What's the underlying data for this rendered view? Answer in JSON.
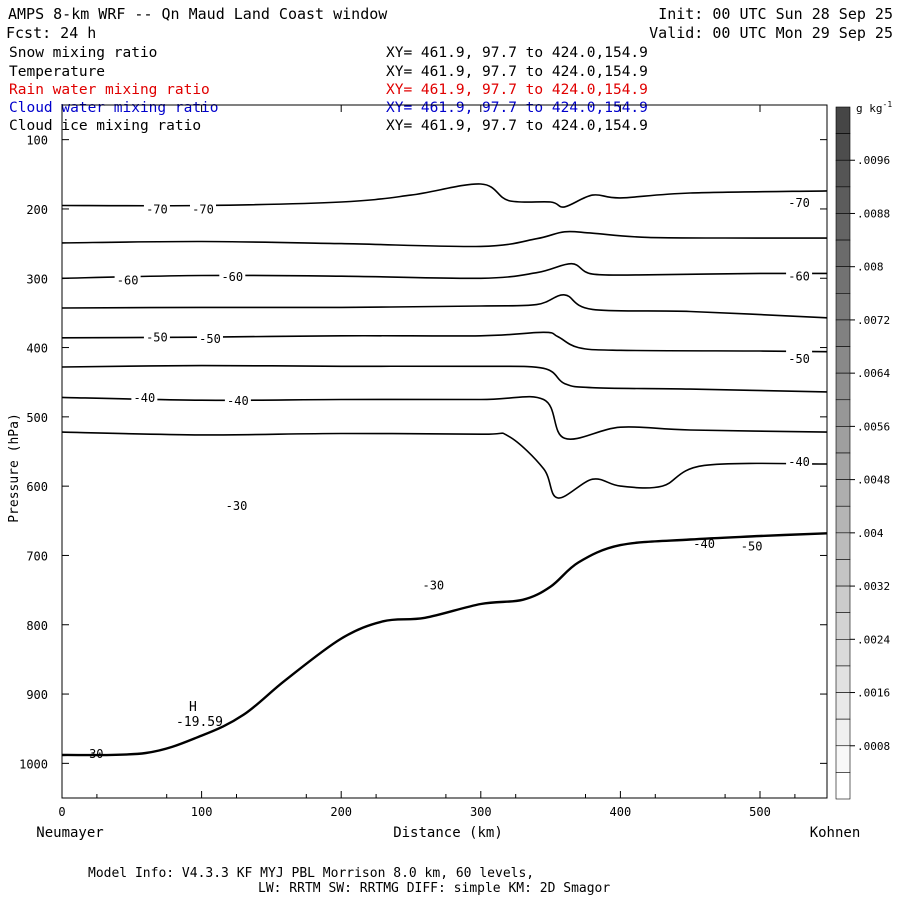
{
  "header": {
    "title": "AMPS 8-km WRF -- Qn Maud Land Coast window",
    "forecast": "Fcst:   24 h",
    "init": "Init: 00 UTC Sun 28 Sep 25",
    "valid": "Valid: 00 UTC Mon 29 Sep 25"
  },
  "fields": [
    {
      "name": "Snow mixing ratio",
      "xy": "XY= 461.9, 97.7 to 424.0,154.9",
      "color": "#000000"
    },
    {
      "name": "Temperature",
      "xy": "XY= 461.9, 97.7 to 424.0,154.9",
      "color": "#000000"
    },
    {
      "name": "Rain water mixing ratio",
      "xy": "XY= 461.9, 97.7 to 424.0,154.9",
      "color": "#e00000"
    },
    {
      "name": "Cloud water mixing ratio",
      "xy": "XY= 461.9, 97.7 to 424.0,154.9",
      "color": "#0000cc"
    },
    {
      "name": "Cloud ice mixing ratio",
      "xy": "XY= 461.9, 97.7 to 424.0,154.9",
      "color": "#000000"
    }
  ],
  "footer": {
    "model_info": "Model Info: V4.3.3   KF      MYJ PBL  Morrison             8.0 km,  60 levels,",
    "physics": "LW: RRTM SW: RRTMG   DIFF: simple KM: 2D Smagor"
  },
  "chart_data": {
    "type": "line",
    "subtype": "vertical cross-section contour plot",
    "xlabel": "Distance (km)",
    "ylabel": "Pressure (hPa)",
    "x_left_label": "Neumayer",
    "x_right_label": "Kohnen",
    "xlim": [
      0,
      548
    ],
    "ylim": [
      1050,
      50
    ],
    "x_ticks": [
      0,
      100,
      200,
      300,
      400,
      500
    ],
    "y_ticks": [
      100,
      200,
      300,
      400,
      500,
      600,
      700,
      800,
      900,
      1000
    ],
    "temperature_labels": [
      {
        "text": "-70",
        "x": 68,
        "p": 199
      },
      {
        "text": "-70",
        "x": 101,
        "p": 199
      },
      {
        "text": "-70",
        "x": 528,
        "p": 190
      },
      {
        "text": "-60",
        "x": 47,
        "p": 302
      },
      {
        "text": "-60",
        "x": 122,
        "p": 297
      },
      {
        "text": "-60",
        "x": 528,
        "p": 296
      },
      {
        "text": "-50",
        "x": 68,
        "p": 384
      },
      {
        "text": "-50",
        "x": 106,
        "p": 386
      },
      {
        "text": "-50",
        "x": 528,
        "p": 415
      },
      {
        "text": "-40",
        "x": 59,
        "p": 471
      },
      {
        "text": "-40",
        "x": 126,
        "p": 476
      },
      {
        "text": "-40",
        "x": 528,
        "p": 564
      },
      {
        "text": "-30",
        "x": 125,
        "p": 627
      },
      {
        "text": "-30",
        "x": 266,
        "p": 742
      },
      {
        "text": "-30",
        "x": 22,
        "p": 985
      },
      {
        "text": "-40",
        "x": 460,
        "p": 682
      },
      {
        "text": "-50",
        "x": 494,
        "p": 686
      }
    ],
    "extremum": {
      "label": "H",
      "value": "-19.59",
      "x": 90,
      "p": 940
    },
    "temperature_contours": [
      {
        "level": -70,
        "x": [
          0,
          100,
          200,
          250,
          300,
          320,
          350,
          360,
          380,
          400,
          450,
          548
        ],
        "p": [
          195,
          195,
          190,
          180,
          164,
          188,
          190,
          197,
          180,
          184,
          177,
          174
        ]
      },
      {
        "level": -65,
        "x": [
          0,
          100,
          200,
          300,
          340,
          360,
          380,
          420,
          500,
          548
        ],
        "p": [
          249,
          247,
          250,
          254,
          243,
          233,
          235,
          241,
          242,
          242
        ]
      },
      {
        "level": -60,
        "x": [
          0,
          100,
          200,
          300,
          340,
          365,
          380,
          420,
          500,
          548
        ],
        "p": [
          300,
          296,
          297,
          300,
          292,
          279,
          294,
          295,
          293,
          293
        ]
      },
      {
        "level": -55,
        "x": [
          0,
          100,
          200,
          300,
          340,
          360,
          380,
          450,
          548
        ],
        "p": [
          343,
          342,
          342,
          340,
          338,
          324,
          345,
          348,
          357
        ]
      },
      {
        "level": -50,
        "x": [
          0,
          100,
          200,
          300,
          345,
          355,
          370,
          400,
          500,
          548
        ],
        "p": [
          386,
          385,
          383,
          383,
          378,
          384,
          400,
          404,
          405,
          406
        ]
      },
      {
        "level": -45,
        "x": [
          0,
          100,
          200,
          300,
          345,
          360,
          380,
          450,
          548
        ],
        "p": [
          428,
          426,
          427,
          427,
          430,
          452,
          458,
          460,
          464
        ]
      },
      {
        "level": -40,
        "x": [
          0,
          100,
          200,
          300,
          345,
          360,
          400,
          450,
          548
        ],
        "p": [
          472,
          476,
          475,
          475,
          475,
          531,
          515,
          519,
          522
        ]
      },
      {
        "level": -35,
        "x": [
          0,
          100,
          200,
          300,
          320,
          345,
          355,
          380,
          400,
          430,
          460,
          548
        ],
        "p": [
          522,
          526,
          524,
          525,
          528,
          575,
          617,
          590,
          600,
          600,
          570,
          568
        ]
      }
    ],
    "terrain_surface": {
      "x": [
        0,
        60,
        100,
        130,
        160,
        200,
        230,
        260,
        300,
        330,
        350,
        370,
        400,
        450,
        500,
        548
      ],
      "p": [
        988,
        985,
        960,
        930,
        880,
        820,
        795,
        790,
        770,
        764,
        745,
        710,
        685,
        677,
        672,
        668
      ]
    }
  }
}
